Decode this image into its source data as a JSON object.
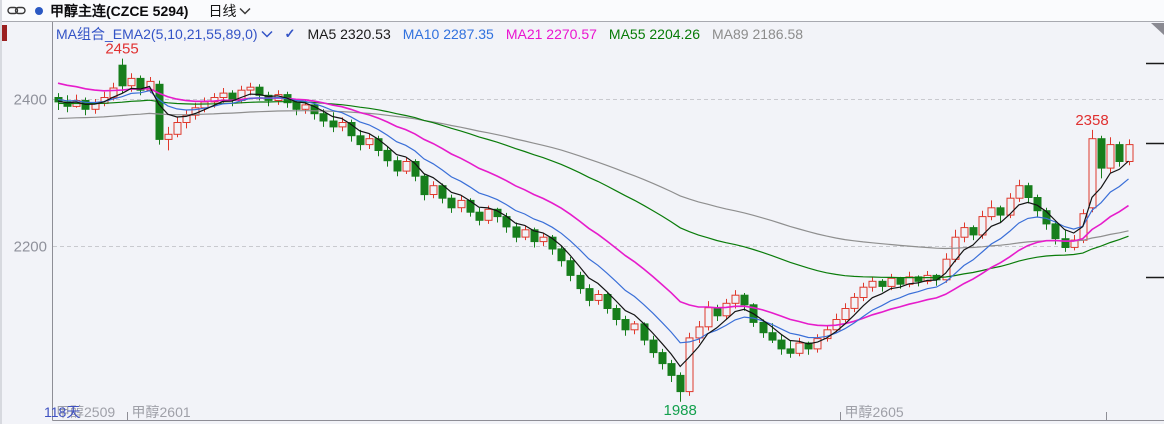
{
  "title_bar": {
    "title": "甲醇主连(CZCE 5294)",
    "period": "日线",
    "link_icon": "chain-link",
    "period_dropdown_icon": "chevron-down",
    "dot_color": "#2B59C3",
    "left_marker_color": "#9B2020"
  },
  "legend": {
    "name": "MA组合_EMA2(5,10,21,55,89,0)",
    "name_color": "#3353C6",
    "dropdown_icon": "chevron-down",
    "checkmark": "✓",
    "items": [
      {
        "text": "MA5 2320.53",
        "color": "#1A1A1A"
      },
      {
        "text": "MA10 2287.35",
        "color": "#3071DE"
      },
      {
        "text": "MA21 2270.57",
        "color": "#EA14D0"
      },
      {
        "text": "MA55 2204.26",
        "color": "#077B07"
      },
      {
        "text": "MA89 2186.58",
        "color": "#8C8C8C"
      }
    ]
  },
  "chart_data": {
    "type": "candlestick",
    "title": "甲醇主连(CZCE 5294) 日线",
    "ylim": [
      1960,
      2480
    ],
    "y_axis": {
      "gridlines": [
        2400,
        2200
      ],
      "label_color": "#8F919B"
    },
    "x_axis": {
      "total_label": "118天",
      "contracts": [
        {
          "label": "甲醇2509",
          "boundary_day": 0
        },
        {
          "label": "甲醇2601",
          "boundary_day": 8
        },
        {
          "label": "甲醇2605",
          "boundary_day": 86
        },
        {
          "label": "",
          "boundary_day": 115
        }
      ]
    },
    "colors": {
      "up": "#DF382C",
      "down": "#177E1C",
      "grid": "#C9CACF",
      "axis": "#8E8E96",
      "contract_label": "#9FA0A8",
      "days_label": "#3F51C1",
      "price_mark": "#1A1A1A",
      "corner": "#8A8A92"
    },
    "emas": [
      {
        "period": 89,
        "color": "#8F8F8F",
        "seed": 2373
      },
      {
        "period": 55,
        "color": "#0A7C0A",
        "seed": 2394
      },
      {
        "period": 21,
        "color": "#E61CCB",
        "seed": 2424
      },
      {
        "period": 10,
        "color": "#3A6FD8",
        "seed": 2400
      },
      {
        "period": 5,
        "color": "#141414",
        "seed": 2398
      }
    ],
    "annotations": [
      {
        "text": "2455",
        "day": 7,
        "price": 2455,
        "placement": "above",
        "color": "#E03030"
      },
      {
        "text": "1988",
        "day": 68,
        "price": 1988,
        "placement": "below",
        "color": "#14A04E"
      },
      {
        "text": "2358",
        "day": 113,
        "price": 2358,
        "placement": "above",
        "color": "#E03030"
      }
    ],
    "right_edge_marks": [
      2449,
      2340,
      2158
    ],
    "candles": {
      "open": [
        2402,
        2396,
        2390,
        2398,
        2386,
        2394,
        2402,
        2446,
        2418,
        2428,
        2412,
        2420,
        2345,
        2352,
        2368,
        2378,
        2388,
        2396,
        2402,
        2408,
        2398,
        2412,
        2416,
        2405,
        2398,
        2406,
        2395,
        2386,
        2392,
        2380,
        2370,
        2362,
        2368,
        2350,
        2338,
        2346,
        2330,
        2316,
        2302,
        2315,
        2295,
        2270,
        2282,
        2265,
        2252,
        2262,
        2246,
        2235,
        2250,
        2240,
        2226,
        2212,
        2222,
        2206,
        2212,
        2196,
        2180,
        2160,
        2142,
        2126,
        2134,
        2115,
        2100,
        2086,
        2094,
        2072,
        2055,
        2040,
        2024,
        2002,
        2075,
        2090,
        2116,
        2105,
        2122,
        2133,
        2120,
        2096,
        2082,
        2072,
        2060,
        2054,
        2068,
        2060,
        2074,
        2086,
        2100,
        2115,
        2130,
        2144,
        2152,
        2145,
        2156,
        2148,
        2158,
        2152,
        2160,
        2154,
        2182,
        2212,
        2225,
        2215,
        2240,
        2252,
        2242,
        2265,
        2282,
        2266,
        2248,
        2230,
        2210,
        2198,
        2208,
        2252,
        2346,
        2306,
        2338,
        2315
      ],
      "high": [
        2408,
        2405,
        2406,
        2402,
        2400,
        2410,
        2422,
        2455,
        2435,
        2432,
        2430,
        2425,
        2362,
        2375,
        2385,
        2395,
        2402,
        2408,
        2415,
        2412,
        2418,
        2422,
        2420,
        2410,
        2412,
        2410,
        2400,
        2398,
        2396,
        2386,
        2382,
        2375,
        2372,
        2358,
        2352,
        2350,
        2336,
        2322,
        2320,
        2318,
        2298,
        2288,
        2285,
        2270,
        2268,
        2265,
        2252,
        2255,
        2252,
        2245,
        2232,
        2228,
        2225,
        2218,
        2215,
        2200,
        2185,
        2165,
        2148,
        2140,
        2136,
        2120,
        2105,
        2098,
        2096,
        2078,
        2060,
        2045,
        2028,
        2082,
        2098,
        2125,
        2120,
        2128,
        2140,
        2136,
        2122,
        2100,
        2095,
        2080,
        2072,
        2075,
        2070,
        2080,
        2092,
        2108,
        2122,
        2136,
        2150,
        2158,
        2155,
        2162,
        2158,
        2165,
        2160,
        2166,
        2162,
        2190,
        2222,
        2232,
        2228,
        2248,
        2262,
        2255,
        2272,
        2290,
        2286,
        2270,
        2252,
        2235,
        2222,
        2215,
        2250,
        2358,
        2350,
        2348,
        2342,
        2345
      ],
      "low": [
        2385,
        2382,
        2388,
        2378,
        2380,
        2390,
        2398,
        2408,
        2410,
        2405,
        2408,
        2338,
        2330,
        2348,
        2360,
        2372,
        2382,
        2388,
        2395,
        2390,
        2394,
        2405,
        2398,
        2390,
        2392,
        2388,
        2378,
        2380,
        2372,
        2362,
        2355,
        2356,
        2342,
        2330,
        2332,
        2322,
        2308,
        2295,
        2298,
        2288,
        2262,
        2265,
        2258,
        2245,
        2246,
        2240,
        2228,
        2230,
        2232,
        2218,
        2205,
        2208,
        2198,
        2200,
        2188,
        2172,
        2152,
        2135,
        2118,
        2120,
        2108,
        2092,
        2078,
        2080,
        2065,
        2048,
        2032,
        2015,
        1988,
        1996,
        2068,
        2085,
        2098,
        2100,
        2115,
        2112,
        2090,
        2075,
        2068,
        2052,
        2048,
        2050,
        2052,
        2055,
        2070,
        2082,
        2096,
        2110,
        2125,
        2138,
        2138,
        2140,
        2142,
        2144,
        2145,
        2148,
        2146,
        2150,
        2178,
        2205,
        2208,
        2210,
        2235,
        2232,
        2238,
        2260,
        2258,
        2240,
        2222,
        2202,
        2192,
        2194,
        2204,
        2246,
        2292,
        2300,
        2308,
        2310
      ],
      "close": [
        2396,
        2390,
        2398,
        2386,
        2394,
        2402,
        2415,
        2418,
        2428,
        2412,
        2424,
        2345,
        2352,
        2368,
        2378,
        2388,
        2396,
        2402,
        2408,
        2398,
        2412,
        2416,
        2405,
        2398,
        2406,
        2395,
        2386,
        2392,
        2380,
        2370,
        2362,
        2368,
        2350,
        2338,
        2346,
        2330,
        2316,
        2302,
        2315,
        2295,
        2270,
        2282,
        2265,
        2252,
        2262,
        2246,
        2235,
        2250,
        2240,
        2226,
        2212,
        2222,
        2206,
        2212,
        2196,
        2180,
        2160,
        2142,
        2126,
        2134,
        2115,
        2100,
        2086,
        2094,
        2072,
        2055,
        2040,
        2024,
        2002,
        2075,
        2090,
        2116,
        2105,
        2122,
        2133,
        2120,
        2096,
        2082,
        2072,
        2060,
        2054,
        2068,
        2060,
        2074,
        2086,
        2100,
        2115,
        2130,
        2144,
        2152,
        2145,
        2156,
        2148,
        2158,
        2152,
        2160,
        2154,
        2182,
        2212,
        2225,
        2215,
        2240,
        2252,
        2242,
        2265,
        2282,
        2266,
        2248,
        2230,
        2210,
        2198,
        2208,
        2244,
        2346,
        2306,
        2338,
        2315,
        2338
      ]
    }
  }
}
